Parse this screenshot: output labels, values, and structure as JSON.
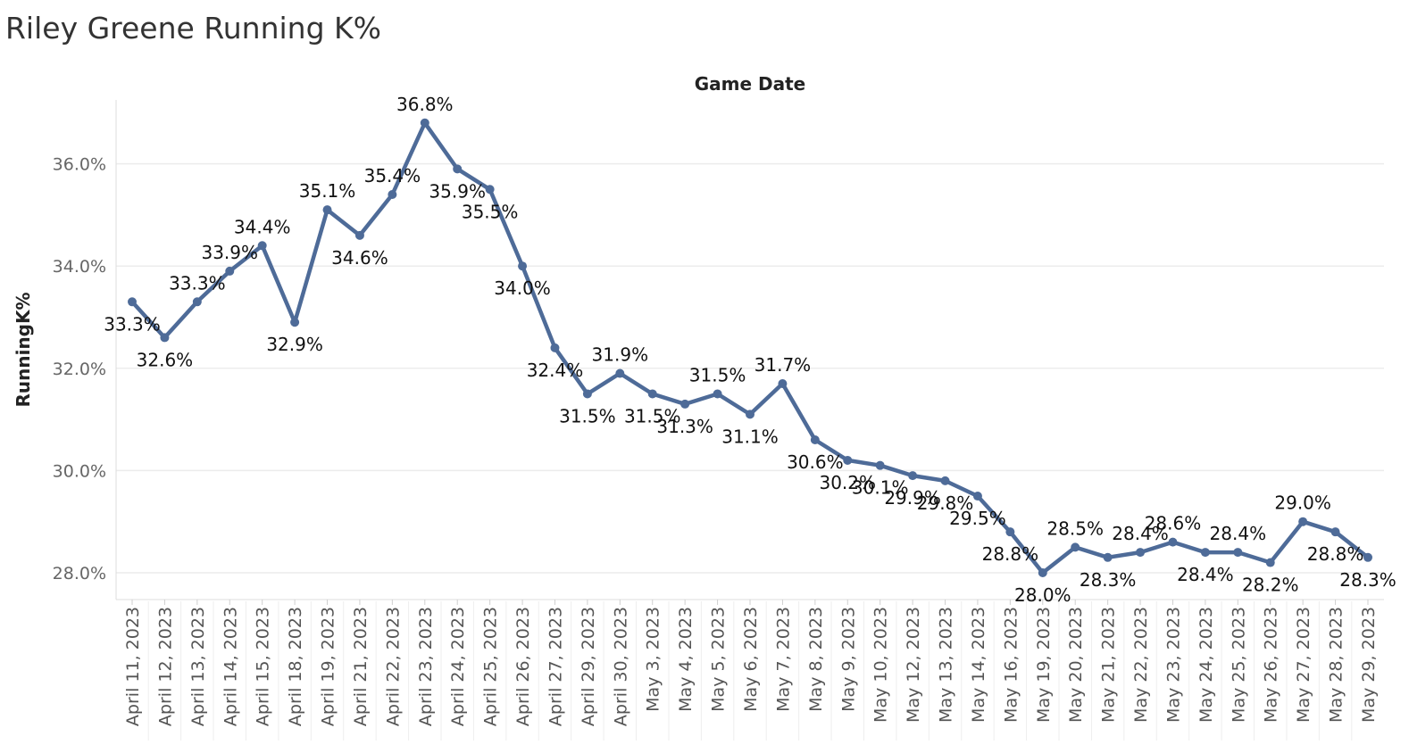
{
  "page": {
    "title": "Riley Greene Running K%"
  },
  "chart_data": {
    "type": "line",
    "title": "Riley Greene Running K%",
    "xlabel": "Game Date",
    "ylabel": "RunningK%",
    "ylim": [
      27.5,
      37.2
    ],
    "yticks": [
      "28.0%",
      "30.0%",
      "32.0%",
      "34.0%",
      "36.0%"
    ],
    "grid": true,
    "line_color": "#4e6b98",
    "categories": [
      "April 11, 2023",
      "April 12, 2023",
      "April 13, 2023",
      "April 14, 2023",
      "April 15, 2023",
      "April 18, 2023",
      "April 19, 2023",
      "April 21, 2023",
      "April 22, 2023",
      "April 23, 2023",
      "April 24, 2023",
      "April 25, 2023",
      "April 26, 2023",
      "April 27, 2023",
      "April 29, 2023",
      "April 30, 2023",
      "May 3, 2023",
      "May 4, 2023",
      "May 5, 2023",
      "May 6, 2023",
      "May 7, 2023",
      "May 8, 2023",
      "May 9, 2023",
      "May 10, 2023",
      "May 12, 2023",
      "May 13, 2023",
      "May 14, 2023",
      "May 16, 2023",
      "May 19, 2023",
      "May 20, 2023",
      "May 21, 2023",
      "May 22, 2023",
      "May 23, 2023",
      "May 24, 2023",
      "May 25, 2023",
      "May 26, 2023",
      "May 27, 2023",
      "May 28, 2023",
      "May 29, 2023"
    ],
    "values": [
      33.3,
      32.6,
      33.3,
      33.9,
      34.4,
      32.9,
      35.1,
      34.6,
      35.4,
      36.8,
      35.9,
      35.5,
      34.0,
      32.4,
      31.5,
      31.9,
      31.5,
      31.3,
      31.5,
      31.1,
      31.7,
      30.6,
      30.2,
      30.1,
      29.9,
      29.8,
      29.5,
      28.8,
      28.0,
      28.5,
      28.3,
      28.4,
      28.6,
      28.4,
      28.4,
      28.2,
      29.0,
      28.8,
      28.3
    ],
    "labels": [
      "33.3%",
      "32.6%",
      "33.3%",
      "33.9%",
      "34.4%",
      "32.9%",
      "35.1%",
      "34.6%",
      "35.4%",
      "36.8%",
      "35.9%",
      "35.5%",
      "34.0%",
      "32.4%",
      "31.5%",
      "31.9%",
      "31.5%",
      "31.3%",
      "31.5%",
      "31.1%",
      "31.7%",
      "30.6%",
      "30.2%",
      "30.1%",
      "29.9%",
      "29.8%",
      "29.5%",
      "28.8%",
      "28.0%",
      "28.5%",
      "28.3%",
      "28.4%",
      "28.6%",
      "28.4%",
      "28.4%",
      "28.2%",
      "29.0%",
      "28.8%",
      "28.3%"
    ]
  }
}
